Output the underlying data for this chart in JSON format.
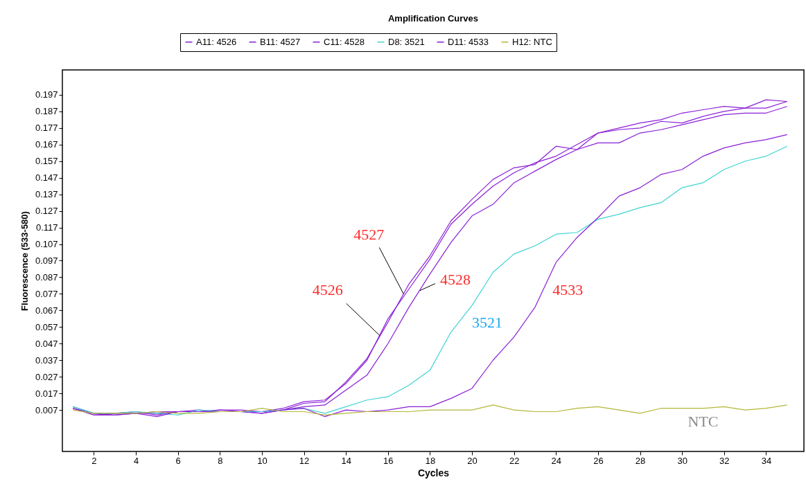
{
  "chart_data": {
    "type": "line",
    "title": "Amplification Curves",
    "xlabel": "Cycles",
    "ylabel": "Fluorescence (533-580)",
    "x": [
      1,
      2,
      3,
      4,
      5,
      6,
      7,
      8,
      9,
      10,
      11,
      12,
      13,
      14,
      15,
      16,
      17,
      18,
      19,
      20,
      21,
      22,
      23,
      24,
      25,
      26,
      27,
      28,
      29,
      30,
      31,
      32,
      33,
      34,
      35
    ],
    "series": [
      {
        "name": "A11: 4526",
        "color": "#8a1fd6",
        "values": [
          0.009,
          0.005,
          0.005,
          0.005,
          0.006,
          0.006,
          0.006,
          0.007,
          0.007,
          0.006,
          0.008,
          0.012,
          0.013,
          0.023,
          0.037,
          0.062,
          0.08,
          0.098,
          0.119,
          0.131,
          0.142,
          0.15,
          0.156,
          0.16,
          0.167,
          0.174,
          0.177,
          0.18,
          0.182,
          0.186,
          0.188,
          0.19,
          0.189,
          0.189,
          0.193
        ]
      },
      {
        "name": "B11: 4527",
        "color": "#8a1fd6",
        "values": [
          0.008,
          0.004,
          0.005,
          0.006,
          0.004,
          0.006,
          0.007,
          0.006,
          0.006,
          0.005,
          0.007,
          0.011,
          0.012,
          0.024,
          0.038,
          0.06,
          0.083,
          0.1,
          0.121,
          0.134,
          0.146,
          0.153,
          0.155,
          0.166,
          0.164,
          0.174,
          0.176,
          0.177,
          0.181,
          0.18,
          0.184,
          0.187,
          0.189,
          0.194,
          0.193
        ]
      },
      {
        "name": "C11: 4528",
        "color": "#8a1fd6",
        "values": [
          0.008,
          0.005,
          0.004,
          0.005,
          0.005,
          0.006,
          0.006,
          0.007,
          0.006,
          0.006,
          0.007,
          0.009,
          0.01,
          0.019,
          0.028,
          0.047,
          0.069,
          0.089,
          0.108,
          0.124,
          0.131,
          0.144,
          0.151,
          0.158,
          0.164,
          0.168,
          0.168,
          0.174,
          0.176,
          0.179,
          0.182,
          0.185,
          0.186,
          0.186,
          0.19
        ]
      },
      {
        "name": "D8: 3521",
        "color": "#3fd3d3",
        "values": [
          0.009,
          0.005,
          0.005,
          0.006,
          0.005,
          0.004,
          0.007,
          0.006,
          0.006,
          0.006,
          0.007,
          0.008,
          0.005,
          0.009,
          0.013,
          0.015,
          0.022,
          0.031,
          0.054,
          0.07,
          0.09,
          0.101,
          0.106,
          0.113,
          0.114,
          0.122,
          0.125,
          0.129,
          0.132,
          0.141,
          0.144,
          0.152,
          0.157,
          0.16,
          0.166
        ]
      },
      {
        "name": "D11: 4533",
        "color": "#8a1fd6",
        "values": [
          0.008,
          0.004,
          0.004,
          0.005,
          0.003,
          0.006,
          0.006,
          0.006,
          0.006,
          0.005,
          0.007,
          0.008,
          0.003,
          0.007,
          0.006,
          0.007,
          0.009,
          0.009,
          0.014,
          0.02,
          0.037,
          0.051,
          0.069,
          0.096,
          0.111,
          0.123,
          0.136,
          0.141,
          0.149,
          0.152,
          0.16,
          0.165,
          0.168,
          0.17,
          0.173
        ]
      },
      {
        "name": "H12: NTC",
        "color": "#b5b53a",
        "values": [
          0.007,
          0.005,
          0.005,
          0.005,
          0.006,
          0.005,
          0.005,
          0.006,
          0.006,
          0.008,
          0.006,
          0.006,
          0.004,
          0.005,
          0.006,
          0.006,
          0.006,
          0.007,
          0.007,
          0.007,
          0.01,
          0.007,
          0.006,
          0.006,
          0.008,
          0.009,
          0.007,
          0.005,
          0.008,
          0.008,
          0.008,
          0.009,
          0.007,
          0.008,
          0.01
        ]
      }
    ],
    "xlim": [
      0.5,
      35.8
    ],
    "ylim": [
      -0.018,
      0.212
    ],
    "xticks": [
      2,
      4,
      6,
      8,
      10,
      12,
      14,
      16,
      18,
      20,
      22,
      24,
      26,
      28,
      30,
      32,
      34
    ],
    "yticks": [
      0.007,
      0.017,
      0.027,
      0.037,
      0.047,
      0.057,
      0.067,
      0.077,
      0.087,
      0.097,
      0.107,
      0.117,
      0.127,
      0.137,
      0.147,
      0.157,
      0.167,
      0.177,
      0.187,
      0.197
    ],
    "legend": "top",
    "annotations": [
      {
        "text": "4527",
        "x": 16.74,
        "y": 0.077
      },
      {
        "text": "4526",
        "x": 15.6,
        "y": 0.052
      },
      {
        "text": "4528",
        "x": 17.52,
        "y": 0.079
      },
      {
        "text": "3521",
        "x": 20,
        "y": 0.07
      },
      {
        "text": "4533",
        "x": 24,
        "y": 0.096
      },
      {
        "text": "NTC",
        "x": 31,
        "y": 0.008
      }
    ]
  }
}
